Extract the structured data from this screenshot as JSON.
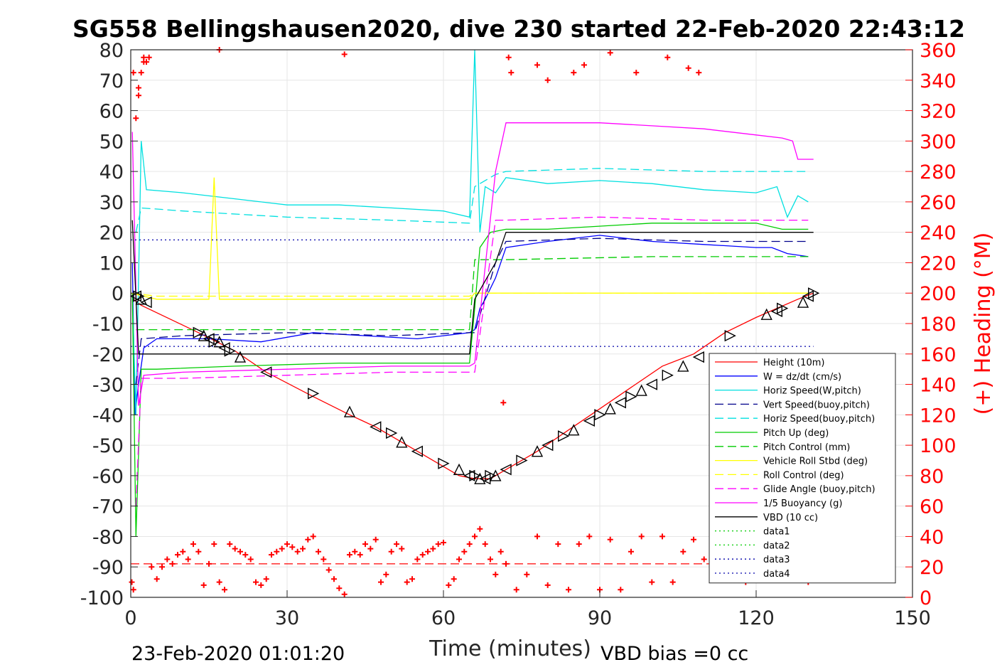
{
  "title": "SG558 Bellingshausen2020, dive 230 started 22-Feb-2020 22:43:12",
  "footer": {
    "left": "23-Feb-2020 01:01:20",
    "right": "VBD bias =0 cc"
  },
  "chart_data": {
    "type": "line",
    "xlabel": "Time (minutes)",
    "ylabel_left": "",
    "ylabel_right": "(+) Heading (°M)",
    "xlim": [
      0,
      150
    ],
    "ylim": [
      -100,
      80
    ],
    "ylim_right": [
      0,
      360
    ],
    "xticks": [
      "0",
      "30",
      "60",
      "90",
      "120",
      "150"
    ],
    "yticks": [
      "80",
      "70",
      "60",
      "50",
      "40",
      "30",
      "20",
      "10",
      "0",
      "-10",
      "-20",
      "-30",
      "-40",
      "-50",
      "-60",
      "-70",
      "-80",
      "-90",
      "-100"
    ],
    "yticks_right": [
      "360",
      "340",
      "320",
      "300",
      "280",
      "260",
      "240",
      "220",
      "200",
      "180",
      "160",
      "140",
      "120",
      "100",
      "80",
      "60",
      "40",
      "20",
      "0"
    ],
    "grid": true,
    "legend_position": "lower-right",
    "legend": [
      {
        "label": "Height (10m)",
        "color": "#ff0000",
        "dash": "solid"
      },
      {
        "label": "W = dz/dt (cm/s)",
        "color": "#0000ff",
        "dash": "solid"
      },
      {
        "label": "Horiz Speed(W,pitch)",
        "color": "#00e0e0",
        "dash": "solid"
      },
      {
        "label": "Vert Speed(buoy,pitch)",
        "color": "#00008b",
        "dash": "dashed"
      },
      {
        "label": "Horiz Speed(buoy,pitch)",
        "color": "#00e0e0",
        "dash": "dashed"
      },
      {
        "label": "Pitch Up (deg)",
        "color": "#00cc00",
        "dash": "solid"
      },
      {
        "label": "Pitch Control (mm)",
        "color": "#00cc00",
        "dash": "dashed"
      },
      {
        "label": "Vehicle Roll Stbd (deg)",
        "color": "#ffff00",
        "dash": "solid"
      },
      {
        "label": "Roll Control (deg)",
        "color": "#ffff00",
        "dash": "dashed"
      },
      {
        "label": "Glide Angle (buoy,pitch)",
        "color": "#ff00ff",
        "dash": "dashed"
      },
      {
        "label": "1/5 Buoyancy (g)",
        "color": "#ff00ff",
        "dash": "solid"
      },
      {
        "label": "VBD (10 cc)",
        "color": "#000000",
        "dash": "solid"
      },
      {
        "label": "data1",
        "color": "#00cc00",
        "dash": "dotted"
      },
      {
        "label": "data2",
        "color": "#00cc00",
        "dash": "dotted"
      },
      {
        "label": "data3",
        "color": "#0000aa",
        "dash": "dotted"
      },
      {
        "label": "data4",
        "color": "#0000aa",
        "dash": "dotted"
      }
    ],
    "series": [
      {
        "name": "Height (10m)",
        "axis": "left",
        "color": "#ff0000",
        "dash": "solid",
        "x": [
          0.5,
          2,
          13,
          20,
          26,
          35,
          42,
          47,
          52,
          56,
          60,
          63,
          66,
          69,
          72,
          78,
          84,
          90,
          96,
          102,
          108,
          114,
          120,
          124,
          128,
          131
        ],
        "y": [
          -2,
          -4,
          -13,
          -19,
          -26,
          -34,
          -40,
          -44,
          -49,
          -53,
          -57,
          -60,
          -61,
          -61,
          -58,
          -52,
          -45,
          -38,
          -31,
          -24,
          -20,
          -13,
          -8,
          -5,
          -2,
          0
        ]
      },
      {
        "name": "W = dz/dt (cm/s)",
        "axis": "left",
        "color": "#0000ff",
        "dash": "solid",
        "x": [
          0.3,
          0.8,
          1.5,
          2.5,
          5,
          15,
          25,
          35,
          45,
          55,
          60,
          65,
          66,
          67,
          68,
          70,
          72,
          80,
          90,
          100,
          110,
          120,
          123,
          126,
          130
        ],
        "y": [
          10,
          -40,
          -30,
          -18,
          -15,
          -15,
          -16,
          -13,
          -14,
          -15,
          -14,
          -13,
          -12,
          -5,
          -2,
          5,
          15,
          17,
          19,
          17,
          16,
          15,
          15,
          13,
          12
        ]
      },
      {
        "name": "Horiz Speed(W,pitch)",
        "axis": "left",
        "color": "#00e0e0",
        "dash": "solid",
        "x": [
          0.3,
          1,
          2,
          3,
          10,
          20,
          30,
          40,
          50,
          60,
          65,
          66,
          67,
          68,
          70,
          72,
          80,
          90,
          100,
          110,
          120,
          124,
          126,
          128,
          130
        ],
        "y": [
          0,
          -40,
          50,
          34,
          33,
          31,
          29,
          29,
          28,
          27,
          25,
          80,
          20,
          35,
          33,
          38,
          36,
          37,
          36,
          34,
          33,
          35,
          25,
          32,
          30
        ]
      },
      {
        "name": "Vert Speed(buoy,pitch)",
        "axis": "left",
        "color": "#00008b",
        "dash": "dashed",
        "x": [
          1,
          2,
          10,
          30,
          50,
          65,
          66,
          70,
          72,
          90,
          110,
          130
        ],
        "y": [
          -30,
          -15,
          -14,
          -13,
          -14,
          -13,
          -13,
          10,
          17,
          18,
          17,
          17
        ]
      },
      {
        "name": "Horiz Speed(buoy,pitch)",
        "axis": "left",
        "color": "#00e0e0",
        "dash": "dashed",
        "x": [
          1,
          2,
          10,
          30,
          50,
          65,
          66,
          70,
          72,
          90,
          110,
          130
        ],
        "y": [
          20,
          28,
          27,
          25,
          24,
          23,
          35,
          39,
          40,
          41,
          40,
          40
        ]
      },
      {
        "name": "Pitch Up (deg)",
        "axis": "left",
        "color": "#00cc00",
        "dash": "solid",
        "x": [
          0.3,
          1,
          2,
          5,
          20,
          40,
          60,
          65,
          66,
          67,
          69,
          72,
          80,
          100,
          120,
          125,
          130
        ],
        "y": [
          0,
          -80,
          -25,
          -25,
          -24,
          -23,
          -23,
          -23,
          -5,
          15,
          20,
          21,
          21,
          23,
          23,
          21,
          21
        ]
      },
      {
        "name": "Pitch Control (mm)",
        "axis": "left",
        "color": "#00cc00",
        "dash": "dashed",
        "x": [
          1,
          2,
          20,
          40,
          60,
          65,
          66,
          70,
          72,
          100,
          130
        ],
        "y": [
          -12,
          -12,
          -12,
          -12,
          -12,
          -12,
          11,
          11,
          11,
          12,
          12
        ]
      },
      {
        "name": "Vehicle Roll Stbd (deg)",
        "axis": "left",
        "color": "#ffff00",
        "dash": "solid",
        "x": [
          0,
          5,
          15,
          16,
          17,
          30,
          40,
          50,
          60,
          65,
          66,
          70,
          80,
          90,
          100,
          110,
          120,
          130
        ],
        "y": [
          0,
          -2,
          -2,
          38,
          -2,
          -2,
          -2,
          -2,
          -2,
          -2,
          0,
          0,
          0,
          0,
          0,
          0,
          0,
          0
        ]
      },
      {
        "name": "Roll Control (deg)",
        "axis": "left",
        "color": "#ffff00",
        "dash": "dashed",
        "x": [
          0,
          5,
          30,
          60,
          65,
          66,
          70,
          100,
          130
        ],
        "y": [
          0,
          -1,
          -1,
          -1,
          -1,
          0,
          0,
          0,
          0
        ]
      },
      {
        "name": "Glide Angle (buoy,pitch)",
        "axis": "left",
        "color": "#ff00ff",
        "dash": "dashed",
        "x": [
          1,
          2,
          10,
          30,
          50,
          65,
          66,
          70,
          72,
          90,
          110,
          130
        ],
        "y": [
          -70,
          -28,
          -28,
          -27,
          -26,
          -26,
          -26,
          24,
          24,
          25,
          24,
          24
        ]
      },
      {
        "name": "1/5 Buoyancy (g)",
        "axis": "left",
        "color": "#ff00ff",
        "dash": "solid",
        "x": [
          0.3,
          1.5,
          2.5,
          10,
          30,
          50,
          65,
          66,
          70,
          72,
          80,
          90,
          100,
          110,
          120,
          125,
          127,
          128,
          131
        ],
        "y": [
          53,
          -37,
          -27,
          -26,
          -25,
          -24,
          -24,
          -23,
          40,
          56,
          56,
          56,
          55,
          54,
          52,
          51,
          50,
          44,
          44
        ]
      },
      {
        "name": "VBD (10 cc)",
        "axis": "left",
        "color": "#000000",
        "dash": "solid",
        "x": [
          0.3,
          1.5,
          2,
          65,
          66,
          70,
          72,
          131
        ],
        "y": [
          24,
          -20,
          -20,
          -20,
          -2,
          10,
          20,
          20
        ]
      },
      {
        "name": "data3",
        "axis": "left",
        "color": "#0000aa",
        "dash": "dotted",
        "x": [
          0,
          66
        ],
        "y": [
          17.5,
          17.5
        ]
      },
      {
        "name": "data4",
        "axis": "left",
        "color": "#0000aa",
        "dash": "dotted",
        "x": [
          0,
          131
        ],
        "y": [
          -17.5,
          -17.5
        ]
      },
      {
        "name": "Heading reference",
        "axis": "right",
        "color": "#ff0000",
        "dash": "dashed",
        "x": [
          0,
          131
        ],
        "y": [
          22,
          22
        ]
      }
    ],
    "heading_points": {
      "axis": "right",
      "color": "#ff0000",
      "marker": "+",
      "x": [
        0.2,
        0.5,
        1,
        1.5,
        2,
        2.5,
        3,
        4,
        5,
        6,
        7,
        8,
        9,
        10,
        11,
        12,
        13,
        14,
        15,
        16,
        17,
        18,
        19,
        20,
        21,
        22,
        23,
        24,
        25,
        26,
        27,
        28,
        29,
        30,
        31,
        32,
        33,
        34,
        35,
        36,
        37,
        38,
        39,
        40,
        41,
        42,
        43,
        44,
        45,
        46,
        47,
        48,
        49,
        50,
        51,
        52,
        53,
        54,
        55,
        56,
        57,
        58,
        59,
        60,
        61,
        62,
        63,
        64,
        65,
        66,
        67,
        68,
        69,
        70,
        71,
        72,
        74,
        76,
        78,
        80,
        82,
        84,
        86,
        88,
        90,
        92,
        94,
        96,
        98,
        100,
        102,
        104,
        106,
        108,
        110,
        112,
        114,
        116,
        118,
        120,
        122,
        124,
        126,
        128,
        130,
        0.5,
        1.5,
        2.5,
        3.5,
        17,
        41,
        72.5,
        73,
        78,
        80,
        85,
        87,
        92,
        97,
        103,
        107,
        109,
        71.5
      ],
      "y": [
        10,
        5,
        315,
        335,
        345,
        352,
        352,
        20,
        12,
        20,
        25,
        22,
        28,
        30,
        25,
        35,
        30,
        8,
        22,
        35,
        10,
        5,
        35,
        32,
        30,
        28,
        25,
        10,
        8,
        12,
        28,
        30,
        32,
        35,
        33,
        30,
        32,
        38,
        40,
        30,
        25,
        18,
        12,
        6,
        2,
        28,
        30,
        28,
        35,
        32,
        38,
        10,
        15,
        30,
        35,
        32,
        10,
        12,
        25,
        28,
        30,
        32,
        35,
        36,
        8,
        12,
        25,
        30,
        35,
        40,
        45,
        35,
        25,
        15,
        30,
        22,
        5,
        15,
        40,
        8,
        35,
        5,
        35,
        40,
        5,
        38,
        5,
        30,
        40,
        10,
        40,
        10,
        30,
        38,
        25,
        15,
        25,
        30,
        10,
        20,
        25,
        28,
        15,
        20,
        10,
        345,
        330,
        355,
        355,
        360,
        357,
        355,
        345,
        350,
        340,
        345,
        350,
        358,
        345,
        355,
        348,
        345,
        128
      ]
    },
    "profile_markers": {
      "axis": "left",
      "color": "#000000",
      "x": [
        1,
        1.5,
        2,
        3,
        13,
        14,
        15,
        16,
        17,
        18,
        19,
        21,
        26,
        35,
        42,
        47,
        50,
        52,
        55,
        60,
        63,
        65,
        66,
        67,
        68,
        69,
        70,
        72,
        75,
        78,
        80,
        83,
        85,
        88,
        90,
        92,
        94,
        96,
        98,
        100,
        103,
        106,
        109,
        115,
        122,
        124,
        125,
        129,
        130,
        131
      ],
      "y": [
        -1,
        -1,
        -2,
        -3,
        -13,
        -14,
        -15,
        -16,
        -16,
        -18,
        -19,
        -21,
        -26,
        -33,
        -39,
        -44,
        -46,
        -49,
        -52,
        -56,
        -58,
        -60,
        -60,
        -61,
        -61,
        -60,
        -60,
        -58,
        -55,
        -52,
        -50,
        -47,
        -45,
        -42,
        -40,
        -38,
        -36,
        -34,
        -32,
        -30,
        -27,
        -24,
        -21,
        -14,
        -7,
        -6,
        -5,
        -3,
        -1,
        0
      ]
    }
  }
}
